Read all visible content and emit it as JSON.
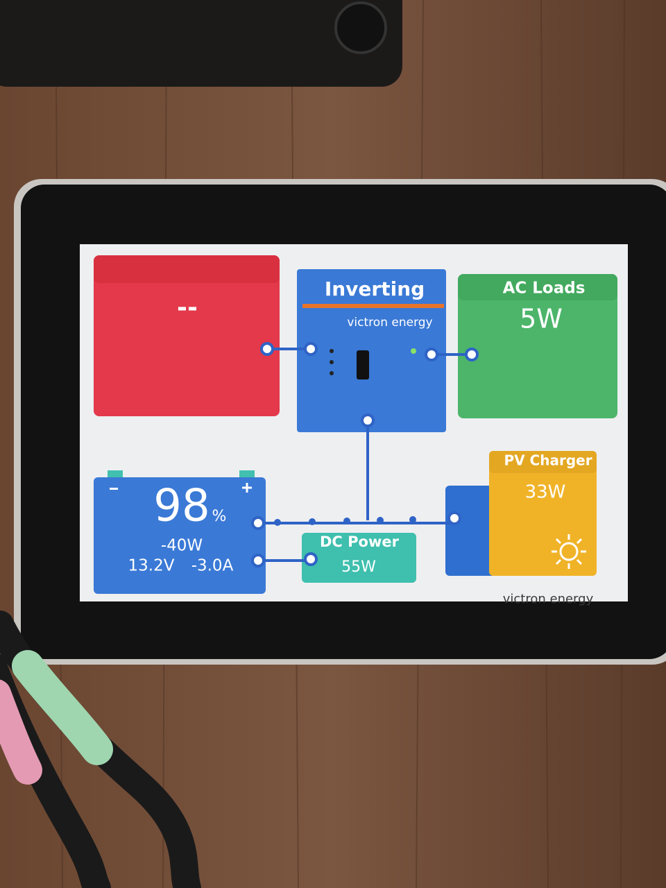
{
  "grid": {
    "value": "--"
  },
  "inverter": {
    "title": "Inverting",
    "brand": "victron energy"
  },
  "ac_loads": {
    "title": "AC Loads",
    "value": "5W"
  },
  "battery": {
    "soc": "98",
    "unit": "%",
    "power": "-40W",
    "voltage": "13.2V",
    "current": "-3.0A"
  },
  "dc_power": {
    "title": "DC Power",
    "value": "55W"
  },
  "pv_charger": {
    "title": "PV Charger",
    "value": "33W"
  },
  "device": {
    "brand": "victron energy"
  }
}
